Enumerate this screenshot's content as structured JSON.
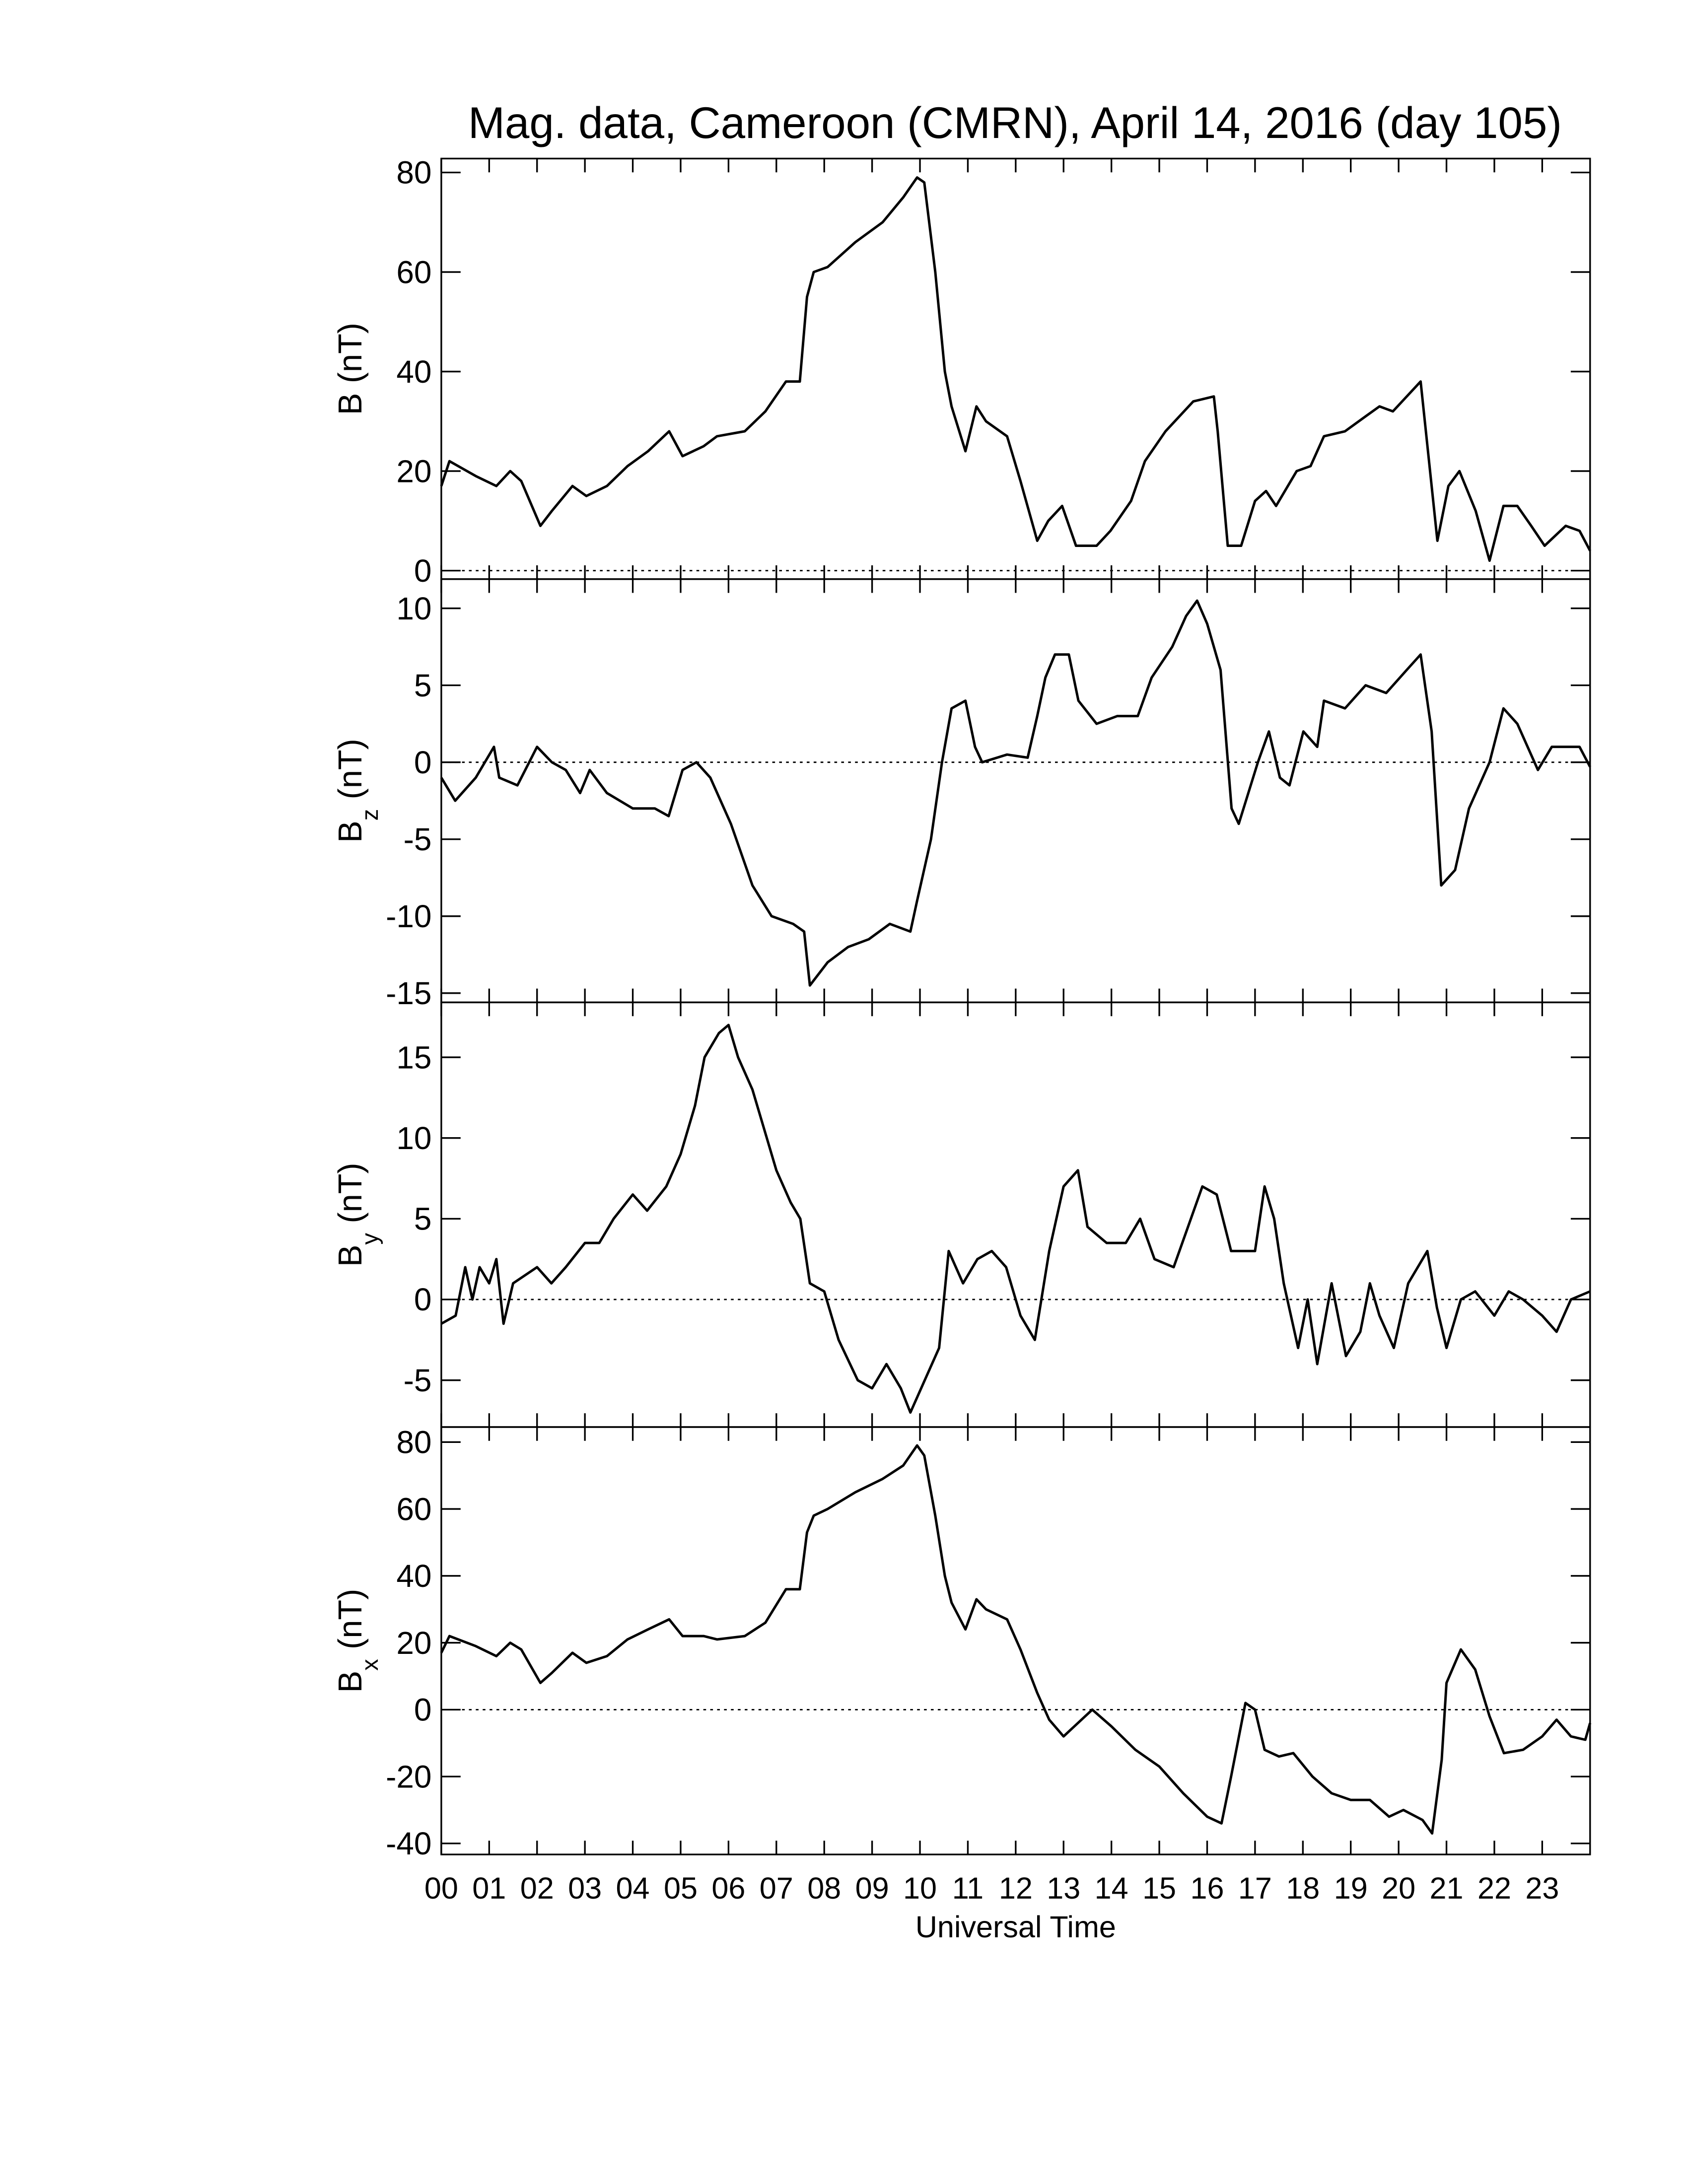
{
  "chart_data": [
    {
      "type": "line",
      "title": "Mag. data, Cameroon (CMRN), April 14, 2016 (day 105)",
      "ylabel": {
        "symbol": "B",
        "unit": "(nT)"
      },
      "xlim": [
        0,
        24
      ],
      "xticks": [
        0,
        1,
        2,
        3,
        4,
        5,
        6,
        7,
        8,
        9,
        10,
        11,
        12,
        13,
        14,
        15,
        16,
        17,
        18,
        19,
        20,
        21,
        22,
        23
      ],
      "ylim": [
        -1.7,
        82.8
      ],
      "yticks": [
        0,
        20,
        40,
        60,
        80
      ],
      "hline": 0,
      "color": "#000000",
      "x": [
        0,
        0.17,
        0.72,
        1.15,
        1.44,
        1.67,
        2.07,
        2.31,
        2.74,
        3.03,
        3.46,
        3.89,
        4.32,
        4.76,
        5.04,
        5.48,
        5.76,
        6.34,
        6.77,
        7.2,
        7.49,
        7.64,
        7.78,
        8.07,
        8.65,
        9.22,
        9.65,
        9.94,
        10.09,
        10.32,
        10.52,
        10.66,
        10.95,
        11.18,
        11.38,
        11.82,
        12.1,
        12.45,
        12.68,
        12.97,
        13.26,
        13.69,
        13.98,
        14.41,
        14.7,
        15.13,
        15.71,
        16.14,
        16.22,
        16.43,
        16.71,
        17.0,
        17.23,
        17.44,
        17.87,
        18.16,
        18.44,
        18.88,
        19.31,
        19.6,
        19.88,
        20.17,
        20.46,
        20.81,
        21.04,
        21.27,
        21.61,
        21.9,
        22.19,
        22.48,
        22.77,
        23.05,
        23.49,
        23.78,
        24
      ],
      "values": [
        17,
        22,
        19,
        17,
        20,
        18,
        9,
        12,
        17,
        15,
        17,
        21,
        24,
        28,
        23,
        25,
        27,
        28,
        32,
        38,
        38,
        55,
        60,
        61,
        66,
        70,
        75,
        79,
        78,
        60,
        40,
        33,
        24,
        33,
        30,
        27,
        18,
        6,
        10,
        13,
        5,
        5,
        8,
        14,
        22,
        28,
        34,
        35,
        28,
        5,
        5,
        14,
        16,
        13,
        20,
        21,
        27,
        28,
        31,
        33,
        32,
        35,
        38,
        6,
        17,
        20,
        12,
        2,
        13,
        13,
        9,
        5,
        9,
        8,
        4
      ]
    },
    {
      "type": "line",
      "ylabel": {
        "symbol": "B",
        "subscript": "z",
        "unit": "(nT)"
      },
      "xlim": [
        0,
        24
      ],
      "xticks": [
        0,
        1,
        2,
        3,
        4,
        5,
        6,
        7,
        8,
        9,
        10,
        11,
        12,
        13,
        14,
        15,
        16,
        17,
        18,
        19,
        20,
        21,
        22,
        23
      ],
      "ylim": [
        -15.6,
        11.9
      ],
      "yticks": [
        -15,
        -10,
        -5,
        0,
        5,
        10
      ],
      "hline": 0,
      "color": "#000000",
      "x": [
        0,
        0.29,
        0.72,
        1.1,
        1.21,
        1.59,
        2.0,
        2.31,
        2.6,
        2.9,
        3.1,
        3.46,
        4.0,
        4.46,
        4.75,
        5.04,
        5.33,
        5.62,
        6.05,
        6.5,
        6.9,
        7.35,
        7.58,
        7.7,
        8.07,
        8.5,
        8.93,
        9.37,
        9.8,
        9.94,
        10.23,
        10.46,
        10.66,
        10.95,
        11.15,
        11.3,
        11.82,
        12.25,
        12.45,
        12.62,
        12.82,
        13.11,
        13.31,
        13.69,
        14.12,
        14.55,
        14.84,
        15.27,
        15.56,
        15.79,
        16.0,
        16.28,
        16.51,
        16.66,
        16.86,
        17.06,
        17.29,
        17.52,
        17.72,
        18.01,
        18.3,
        18.44,
        18.88,
        19.31,
        19.74,
        20.17,
        20.46,
        20.69,
        20.89,
        21.18,
        21.47,
        21.9,
        22.19,
        22.48,
        22.91,
        23.2,
        23.78,
        24
      ],
      "values": [
        -1,
        -2.5,
        -1,
        1,
        -1,
        -1.5,
        1,
        0,
        -0.5,
        -2,
        -0.5,
        -2,
        -3,
        -3,
        -3.5,
        -0.5,
        0,
        -1,
        -4,
        -8,
        -10,
        -10.5,
        -11,
        -14.5,
        -13,
        -12,
        -11.5,
        -10.5,
        -11,
        -9,
        -5,
        0,
        3.5,
        4,
        1,
        0,
        0.5,
        0.3,
        3,
        5.5,
        7,
        7,
        4,
        2.5,
        3,
        3,
        5.5,
        7.5,
        9.5,
        10.5,
        9,
        6,
        -3,
        -4,
        -2,
        0,
        2,
        -1,
        -1.5,
        2,
        1,
        4,
        3.5,
        5,
        4.5,
        6,
        7,
        2,
        -8,
        -7,
        -3,
        0,
        3.5,
        2.5,
        -0.5,
        1,
        1,
        -0.3
      ]
    },
    {
      "type": "line",
      "ylabel": {
        "symbol": "B",
        "subscript": "y",
        "unit": "(nT)"
      },
      "xlim": [
        0,
        24
      ],
      "xticks": [
        0,
        1,
        2,
        3,
        4,
        5,
        6,
        7,
        8,
        9,
        10,
        11,
        12,
        13,
        14,
        15,
        16,
        17,
        18,
        19,
        20,
        21,
        22,
        23
      ],
      "ylim": [
        -7.9,
        18.4
      ],
      "yticks": [
        -5,
        0,
        5,
        10,
        15
      ],
      "hline": 0,
      "color": "#000000",
      "x": [
        0,
        0.3,
        0.5,
        0.65,
        0.8,
        1.0,
        1.15,
        1.3,
        1.5,
        2.0,
        2.3,
        2.6,
        3.0,
        3.3,
        3.6,
        4.0,
        4.3,
        4.7,
        5.0,
        5.3,
        5.5,
        5.8,
        6.0,
        6.2,
        6.5,
        6.8,
        7.0,
        7.3,
        7.5,
        7.7,
        8.0,
        8.3,
        8.7,
        9.0,
        9.3,
        9.6,
        9.8,
        10.1,
        10.4,
        10.6,
        10.9,
        11.2,
        11.5,
        11.8,
        12.1,
        12.4,
        12.7,
        13.0,
        13.3,
        13.5,
        13.9,
        14.3,
        14.6,
        14.9,
        15.3,
        15.6,
        15.9,
        16.2,
        16.5,
        16.8,
        17.0,
        17.2,
        17.4,
        17.6,
        17.9,
        18.1,
        18.3,
        18.6,
        18.9,
        19.2,
        19.4,
        19.6,
        19.9,
        20.2,
        20.6,
        20.8,
        21.0,
        21.3,
        21.6,
        22.0,
        22.3,
        22.6,
        23.0,
        23.3,
        23.6,
        24
      ],
      "values": [
        -1.5,
        -1,
        2,
        0,
        2,
        1,
        2.5,
        -1.5,
        1,
        2,
        1,
        2,
        3.5,
        3.5,
        5,
        6.5,
        5.5,
        7,
        9,
        12,
        15,
        16.5,
        17,
        15,
        13,
        10,
        8,
        6,
        5,
        1,
        0.5,
        -2.5,
        -5,
        -5.5,
        -4,
        -5.5,
        -7,
        -5,
        -3,
        3,
        1,
        2.5,
        3,
        2,
        -1,
        -2.5,
        3,
        7,
        8,
        4.5,
        3.5,
        3.5,
        5,
        2.5,
        2,
        4.5,
        7,
        6.5,
        3,
        3,
        3,
        7,
        5,
        1,
        -3,
        0,
        -4,
        1,
        -3.5,
        -2,
        1,
        -1,
        -3,
        1,
        3,
        -0.5,
        -3,
        0,
        0.5,
        -1,
        0.5,
        0,
        -1,
        -2,
        0,
        0.5
      ]
    },
    {
      "type": "line",
      "ylabel": {
        "symbol": "B",
        "subscript": "x",
        "unit": "(nT)"
      },
      "xlabel": "Universal Time",
      "xlim": [
        0,
        24
      ],
      "xticks": [
        {
          "value": 0,
          "label": "00"
        },
        {
          "value": 1,
          "label": "01"
        },
        {
          "value": 2,
          "label": "02"
        },
        {
          "value": 3,
          "label": "03"
        },
        {
          "value": 4,
          "label": "04"
        },
        {
          "value": 5,
          "label": "05"
        },
        {
          "value": 6,
          "label": "06"
        },
        {
          "value": 7,
          "label": "07"
        },
        {
          "value": 8,
          "label": "08"
        },
        {
          "value": 9,
          "label": "09"
        },
        10,
        11,
        12,
        13,
        14,
        15,
        16,
        17,
        18,
        19,
        20,
        21,
        22,
        23
      ],
      "ylim": [
        -43.3,
        84.5
      ],
      "yticks": [
        -40,
        -20,
        0,
        20,
        40,
        60,
        80
      ],
      "hline": 0,
      "color": "#000000",
      "x": [
        0,
        0.17,
        0.72,
        1.15,
        1.44,
        1.67,
        2.07,
        2.31,
        2.74,
        3.03,
        3.46,
        3.89,
        4.32,
        4.76,
        5.04,
        5.48,
        5.76,
        6.34,
        6.77,
        7.2,
        7.49,
        7.64,
        7.78,
        8.07,
        8.65,
        9.22,
        9.65,
        9.94,
        10.09,
        10.32,
        10.52,
        10.66,
        10.95,
        11.18,
        11.38,
        11.82,
        12.1,
        12.45,
        12.7,
        13.0,
        13.3,
        13.6,
        14.0,
        14.5,
        15.0,
        15.5,
        16.0,
        16.3,
        16.5,
        16.8,
        17.0,
        17.2,
        17.5,
        17.8,
        18.2,
        18.6,
        19.0,
        19.4,
        19.8,
        20.1,
        20.5,
        20.7,
        20.9,
        21.0,
        21.3,
        21.6,
        21.9,
        22.2,
        22.6,
        23.0,
        23.3,
        23.6,
        23.9,
        24
      ],
      "values": [
        17,
        22,
        19,
        16,
        20,
        18,
        8,
        11,
        17,
        14,
        16,
        21,
        24,
        27,
        22,
        22,
        21,
        22,
        26,
        36,
        36,
        53,
        58,
        60,
        65,
        69,
        73,
        79,
        76,
        58,
        40,
        32,
        24,
        33,
        30,
        27,
        18,
        5,
        -3,
        -8,
        -4,
        0,
        -5,
        -12,
        -17,
        -25,
        -32,
        -34,
        -20,
        2,
        0,
        -12,
        -14,
        -13,
        -20,
        -25,
        -27,
        -27,
        -32,
        -30,
        -33,
        -37,
        -15,
        8,
        18,
        12,
        -2,
        -13,
        -12,
        -8,
        -3,
        -8,
        -9,
        -4
      ]
    }
  ]
}
